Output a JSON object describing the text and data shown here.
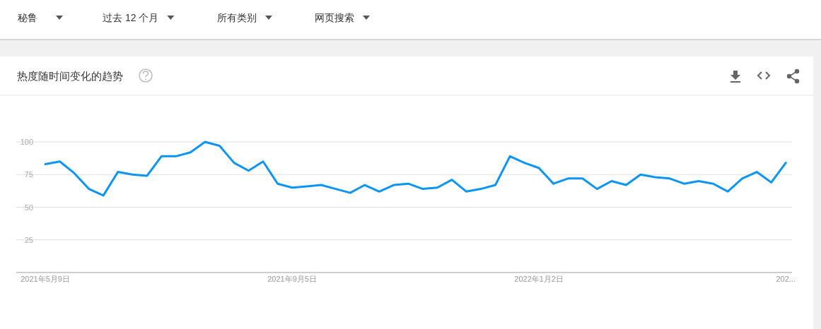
{
  "chart_data": {
    "type": "line",
    "title": "热度随时间变化的趋势",
    "annotations": [
      "秘鲁",
      "过去 12 个月",
      "所有类别",
      "网页搜索"
    ],
    "x": [
      "2021-05-09",
      "2021-05-16",
      "2021-05-23",
      "2021-05-30",
      "2021-06-06",
      "2021-06-13",
      "2021-06-20",
      "2021-06-27",
      "2021-07-04",
      "2021-07-11",
      "2021-07-18",
      "2021-07-25",
      "2021-08-01",
      "2021-08-08",
      "2021-08-15",
      "2021-08-22",
      "2021-08-29",
      "2021-09-05",
      "2021-09-12",
      "2021-09-19",
      "2021-09-26",
      "2021-10-03",
      "2021-10-10",
      "2021-10-17",
      "2021-10-24",
      "2021-10-31",
      "2021-11-07",
      "2021-11-14",
      "2021-11-21",
      "2021-11-28",
      "2021-12-05",
      "2021-12-12",
      "2021-12-19",
      "2021-12-26",
      "2022-01-02",
      "2022-01-09",
      "2022-01-16",
      "2022-01-23",
      "2022-01-30",
      "2022-02-06",
      "2022-02-13",
      "2022-02-20",
      "2022-02-27",
      "2022-03-06",
      "2022-03-13",
      "2022-03-20",
      "2022-03-27",
      "2022-04-03",
      "2022-04-10",
      "2022-04-17",
      "2022-04-24",
      "2022-05-01"
    ],
    "series": [
      {
        "color": "#0c95f3",
        "values": [
          83,
          85,
          76,
          64,
          59,
          77,
          75,
          74,
          89,
          89,
          92,
          100,
          97,
          84,
          78,
          85,
          68,
          65,
          66,
          67,
          64,
          61,
          67,
          62,
          67,
          68,
          64,
          65,
          71,
          62,
          64,
          67,
          89,
          84,
          80,
          68,
          72,
          72,
          64,
          70,
          67,
          75,
          73,
          72,
          68,
          70,
          68,
          62,
          72,
          77,
          69,
          84
        ]
      }
    ],
    "xlim": [
      "2021-04-25",
      "2022-05-04"
    ],
    "xticks": [
      {
        "value": "2021-05-09",
        "label": "2021年5月9日"
      },
      {
        "value": "2021-09-05",
        "label": "2021年9月5日"
      },
      {
        "value": "2022-01-02",
        "label": "2022年1月2日"
      },
      {
        "value": "2022-05-01",
        "label": "202..."
      }
    ],
    "ylim": [
      0,
      100
    ],
    "yticks": [
      25,
      50,
      75,
      100
    ],
    "grid": "y"
  }
}
